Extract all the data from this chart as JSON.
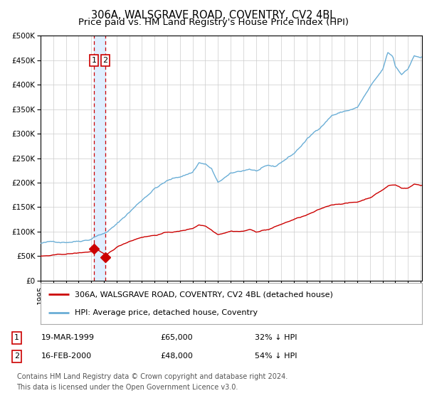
{
  "title": "306A, WALSGRAVE ROAD, COVENTRY, CV2 4BL",
  "subtitle": "Price paid vs. HM Land Registry's House Price Index (HPI)",
  "legend_line1": "306A, WALSGRAVE ROAD, COVENTRY, CV2 4BL (detached house)",
  "legend_line2": "HPI: Average price, detached house, Coventry",
  "transaction1_date": "19-MAR-1999",
  "transaction1_price": 65000,
  "transaction1_pct": "32% ↓ HPI",
  "transaction2_date": "16-FEB-2000",
  "transaction2_price": 48000,
  "transaction2_pct": "54% ↓ HPI",
  "footnote1": "Contains HM Land Registry data © Crown copyright and database right 2024.",
  "footnote2": "This data is licensed under the Open Government Licence v3.0.",
  "hpi_color": "#6aaed6",
  "price_color": "#cc0000",
  "marker_color": "#cc0000",
  "shade_color": "#ddeeff",
  "dashed_color": "#cc0000",
  "grid_color": "#cccccc",
  "background_color": "#ffffff",
  "ylim_min": 0,
  "ylim_max": 500000,
  "x_start_year": 1995,
  "x_end_year": 2025,
  "transaction1_year": 1999.21,
  "transaction2_year": 2000.12,
  "title_fontsize": 10.5,
  "subtitle_fontsize": 9.5,
  "tick_fontsize": 7.5,
  "legend_fontsize": 8,
  "table_fontsize": 8,
  "footnote_fontsize": 7
}
